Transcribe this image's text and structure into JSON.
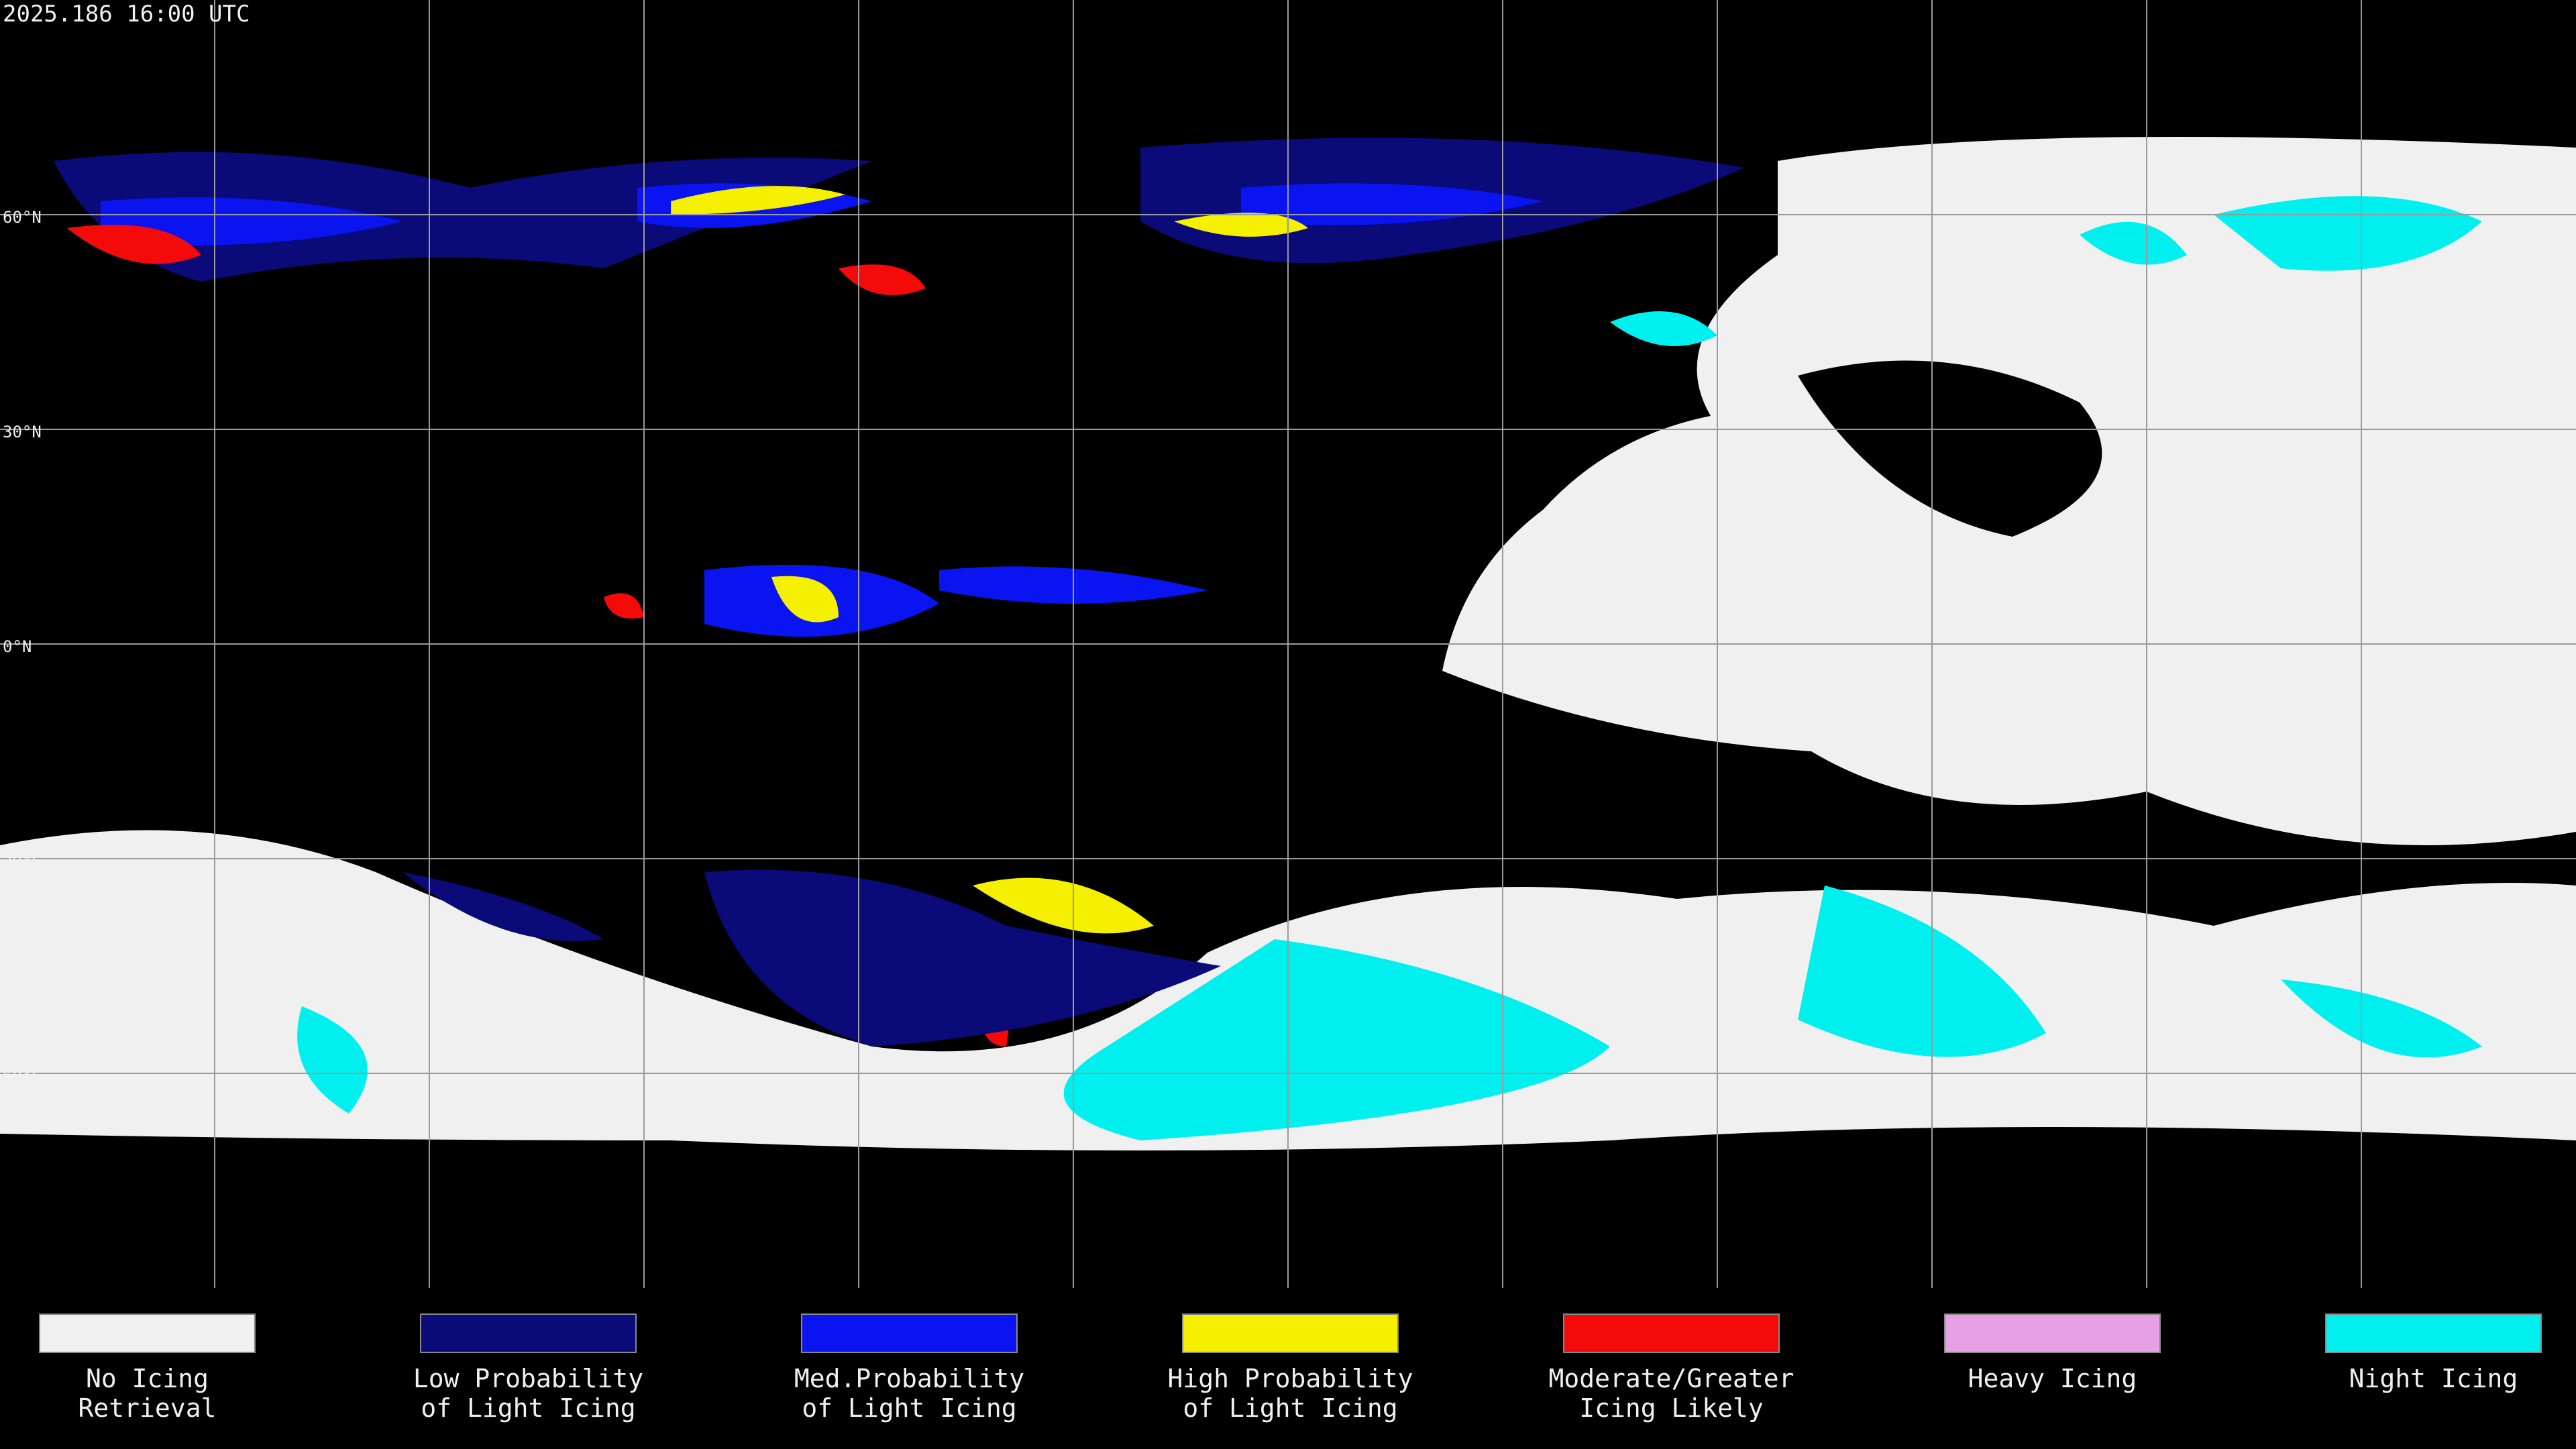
{
  "header": {
    "title": "2025.186 16:00 UTC"
  },
  "map": {
    "lat_labels": [
      "60°N",
      "30°N",
      "0°N",
      "30°S",
      "60°S"
    ]
  },
  "legend": {
    "items": [
      {
        "color": "#f0f0f0",
        "lines": [
          "No Icing",
          "Retrieval"
        ]
      },
      {
        "color": "#0a0a78",
        "lines": [
          "Low Probability",
          "of Light Icing"
        ]
      },
      {
        "color": "#0a14f0",
        "lines": [
          "Med.Probability",
          "of Light Icing"
        ]
      },
      {
        "color": "#f5f000",
        "lines": [
          "High Probability",
          "of Light Icing"
        ]
      },
      {
        "color": "#f50a0a",
        "lines": [
          "Moderate/Greater",
          "Icing Likely"
        ]
      },
      {
        "color": "#e6a0e6",
        "lines": [
          "Heavy Icing"
        ]
      },
      {
        "color": "#00f0f0",
        "lines": [
          "Night Icing"
        ]
      }
    ]
  }
}
